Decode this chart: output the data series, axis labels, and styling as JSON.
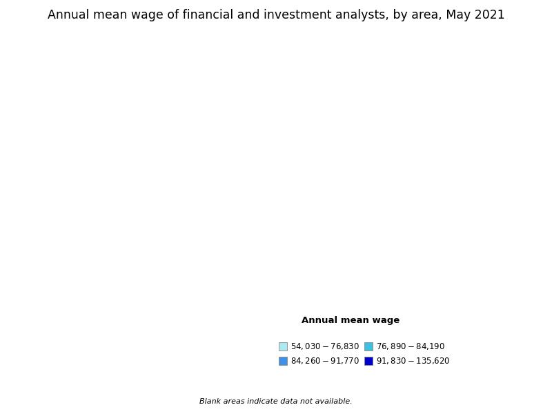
{
  "title": "Annual mean wage of financial and investment analysts, by area, May 2021",
  "legend_title": "Annual mean wage",
  "background_color": "#ffffff",
  "no_data_color": "#ffffff",
  "title_fontsize": 12.5,
  "legend_title_fontsize": 9.5,
  "legend_fontsize": 8.5,
  "blank_note": "Blank areas indicate data not available.",
  "colors": {
    "cat1": "#aee8f0",
    "cat2": "#40c0e0",
    "cat3": "#4090e8",
    "cat4": "#0000cc",
    "nodata": "#ffffff"
  },
  "legend_items": [
    {
      "label": "$54,030 - $76,830",
      "color": "#aee8f0"
    },
    {
      "label": "$76,890 - $84,190",
      "color": "#40c0e0"
    },
    {
      "label": "$84,260 - $91,770",
      "color": "#4090e8"
    },
    {
      "label": "$91,830 - $135,620",
      "color": "#0000cc"
    }
  ],
  "seed": 2021,
  "color_weights": [
    0.18,
    0.2,
    0.2,
    0.22,
    0.2
  ]
}
